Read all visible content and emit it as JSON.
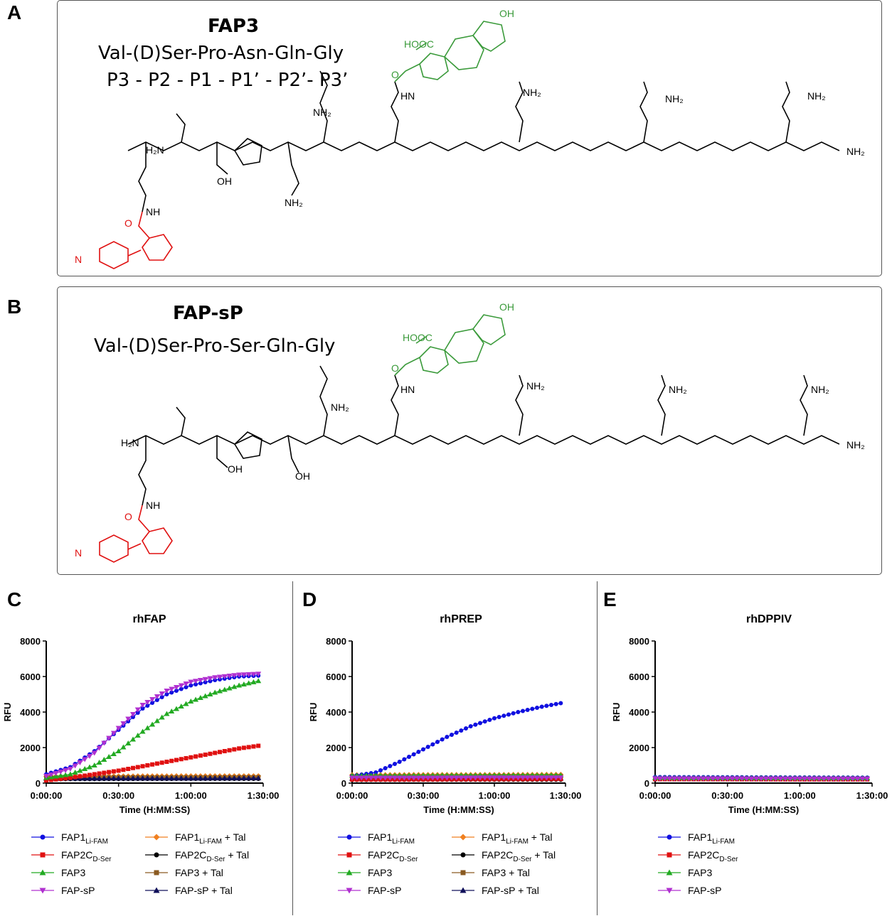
{
  "panels": {
    "A": {
      "letter": "A",
      "title": "FAP3",
      "sequence": "Val-(D)Ser-Pro-Asn-Gln-Gly",
      "positions": "P3 -  P2 -  P1 - P1’ - P2’- P3’"
    },
    "B": {
      "letter": "B",
      "title": "FAP-sP",
      "sequence": "Val-(D)Ser-Pro-Ser-Gln-Gly"
    }
  },
  "structure_labels": {
    "h2n": "H₂N",
    "nh2": "NH₂",
    "nh": "NH",
    "hn": "HN",
    "h": "H",
    "n": "N",
    "o": "O",
    "oh": "OH",
    "cooh": "HOOC",
    "fl_oh": "OH"
  },
  "colors": {
    "fam": "#3a9a3a",
    "quencher": "#e01010",
    "FAP1": "#1010e0",
    "FAP2C": "#e01010",
    "FAP3": "#22aa22",
    "FAP-sP": "#b030d0",
    "FAP1+Tal": "#f08020",
    "FAP2C+Tal": "#000000",
    "FAP3+Tal": "#8a5a20",
    "FAP-sP+Tal": "#10105a"
  },
  "chart_data": [
    {
      "panel": "C",
      "type": "line",
      "title": "rhFAP",
      "xlabel": "Time (H:MM:SS)",
      "ylabel": "RFU",
      "xlim_min": [
        0,
        90
      ],
      "ylim": [
        0,
        8000
      ],
      "x_tick_labels": [
        "0:00:00",
        "0:30:00",
        "1:00:00",
        "1:30:00"
      ],
      "y_tick_labels": [
        "0",
        "2000",
        "4000",
        "6000",
        "8000"
      ],
      "series": [
        {
          "name": "FAP1",
          "sub": "Li-FAM",
          "tal": "",
          "marker": "circle",
          "color_key": "FAP1",
          "x": [
            0,
            10,
            20,
            30,
            40,
            50,
            60,
            70,
            80,
            88
          ],
          "y": [
            500,
            900,
            1800,
            3000,
            4200,
            5000,
            5500,
            5800,
            6000,
            6050
          ]
        },
        {
          "name": "FAP2C",
          "sub": "D-Ser",
          "tal": "",
          "marker": "square",
          "color_key": "FAP2C",
          "x": [
            0,
            10,
            20,
            30,
            40,
            50,
            60,
            70,
            80,
            88
          ],
          "y": [
            150,
            300,
            500,
            700,
            950,
            1200,
            1450,
            1700,
            1950,
            2100
          ]
        },
        {
          "name": "FAP3",
          "sub": "",
          "tal": "",
          "marker": "triangle-up",
          "color_key": "FAP3",
          "x": [
            0,
            10,
            20,
            30,
            40,
            50,
            60,
            70,
            80,
            88
          ],
          "y": [
            300,
            500,
            1000,
            1800,
            2900,
            3900,
            4600,
            5100,
            5500,
            5750
          ]
        },
        {
          "name": "FAP-sP",
          "sub": "",
          "tal": "",
          "marker": "triangle-down",
          "color_key": "FAP-sP",
          "x": [
            0,
            10,
            20,
            30,
            40,
            50,
            60,
            70,
            80,
            88
          ],
          "y": [
            400,
            800,
            1700,
            3100,
            4400,
            5200,
            5700,
            5950,
            6100,
            6150
          ]
        },
        {
          "name": "FAP1",
          "sub": "Li-FAM",
          "tal": " + Tal",
          "marker": "diamond",
          "color_key": "FAP1+Tal",
          "x": [
            0,
            30,
            60,
            88
          ],
          "y": [
            380,
            390,
            400,
            400
          ]
        },
        {
          "name": "FAP2C",
          "sub": "D-Ser",
          "tal": " + Tal",
          "marker": "circle",
          "color_key": "FAP2C+Tal",
          "x": [
            0,
            30,
            60,
            88
          ],
          "y": [
            220,
            230,
            240,
            240
          ]
        },
        {
          "name": "FAP3",
          "sub": "",
          "tal": " + Tal",
          "marker": "square",
          "color_key": "FAP3+Tal",
          "x": [
            0,
            30,
            60,
            88
          ],
          "y": [
            320,
            330,
            330,
            340
          ]
        },
        {
          "name": "FAP-sP",
          "sub": "",
          "tal": " + Tal",
          "marker": "triangle-up",
          "color_key": "FAP-sP+Tal",
          "x": [
            0,
            30,
            60,
            88
          ],
          "y": [
            260,
            270,
            270,
            280
          ]
        }
      ]
    },
    {
      "panel": "D",
      "type": "line",
      "title": "rhPREP",
      "xlabel": "Time (H:MM:SS)",
      "ylabel": "RFU",
      "xlim_min": [
        0,
        90
      ],
      "ylim": [
        0,
        8000
      ],
      "x_tick_labels": [
        "0:00:00",
        "0:30:00",
        "1:00:00",
        "1:30:00"
      ],
      "y_tick_labels": [
        "0",
        "2000",
        "4000",
        "6000",
        "8000"
      ],
      "series": [
        {
          "name": "FAP1",
          "sub": "Li-FAM",
          "tal": "",
          "marker": "circle",
          "color_key": "FAP1",
          "x": [
            0,
            10,
            20,
            30,
            40,
            50,
            60,
            70,
            80,
            88
          ],
          "y": [
            400,
            600,
            1200,
            1900,
            2600,
            3200,
            3650,
            4000,
            4300,
            4500
          ]
        },
        {
          "name": "FAP2C",
          "sub": "D-Ser",
          "tal": "",
          "marker": "square",
          "color_key": "FAP2C",
          "x": [
            0,
            30,
            60,
            88
          ],
          "y": [
            200,
            210,
            220,
            230
          ]
        },
        {
          "name": "FAP3",
          "sub": "",
          "tal": "",
          "marker": "triangle-up",
          "color_key": "FAP3",
          "x": [
            0,
            30,
            60,
            88
          ],
          "y": [
            420,
            430,
            440,
            440
          ]
        },
        {
          "name": "FAP-sP",
          "sub": "",
          "tal": "",
          "marker": "triangle-down",
          "color_key": "FAP-sP",
          "x": [
            0,
            30,
            60,
            88
          ],
          "y": [
            300,
            300,
            310,
            310
          ]
        },
        {
          "name": "FAP1",
          "sub": "Li-FAM",
          "tal": " + Tal",
          "marker": "diamond",
          "color_key": "FAP1+Tal",
          "x": [
            0,
            30,
            60,
            88
          ],
          "y": [
            460,
            470,
            470,
            480
          ]
        },
        {
          "name": "FAP2C",
          "sub": "D-Ser",
          "tal": " + Tal",
          "marker": "circle",
          "color_key": "FAP2C+Tal",
          "x": [
            0,
            30,
            60,
            88
          ],
          "y": [
            180,
            190,
            190,
            190
          ]
        },
        {
          "name": "FAP3",
          "sub": "",
          "tal": " + Tal",
          "marker": "square",
          "color_key": "FAP3+Tal",
          "x": [
            0,
            30,
            60,
            88
          ],
          "y": [
            380,
            380,
            390,
            390
          ]
        },
        {
          "name": "FAP-sP",
          "sub": "",
          "tal": " + Tal",
          "marker": "triangle-up",
          "color_key": "FAP-sP+Tal",
          "x": [
            0,
            30,
            60,
            88
          ],
          "y": [
            260,
            260,
            270,
            270
          ]
        }
      ]
    },
    {
      "panel": "E",
      "type": "line",
      "title": "rhDPPIV",
      "xlabel": "Time (H:MM:SS)",
      "ylabel": "RFU",
      "xlim_min": [
        0,
        90
      ],
      "ylim": [
        0,
        8000
      ],
      "x_tick_labels": [
        "0:00:00",
        "0:30:00",
        "1:00:00",
        "1:30:00"
      ],
      "y_tick_labels": [
        "0",
        "2000",
        "4000",
        "6000",
        "8000"
      ],
      "series": [
        {
          "name": "FAP1",
          "sub": "Li-FAM",
          "tal": "",
          "marker": "circle",
          "color_key": "FAP1",
          "x": [
            0,
            30,
            60,
            88
          ],
          "y": [
            340,
            330,
            320,
            310
          ]
        },
        {
          "name": "FAP2C",
          "sub": "D-Ser",
          "tal": "",
          "marker": "square",
          "color_key": "FAP2C",
          "x": [
            0,
            30,
            60,
            88
          ],
          "y": [
            220,
            220,
            210,
            210
          ]
        },
        {
          "name": "FAP3",
          "sub": "",
          "tal": "",
          "marker": "triangle-up",
          "color_key": "FAP3",
          "x": [
            0,
            30,
            60,
            88
          ],
          "y": [
            300,
            290,
            290,
            280
          ]
        },
        {
          "name": "FAP-sP",
          "sub": "",
          "tal": "",
          "marker": "triangle-down",
          "color_key": "FAP-sP",
          "x": [
            0,
            30,
            60,
            88
          ],
          "y": [
            260,
            260,
            250,
            250
          ]
        }
      ]
    }
  ]
}
